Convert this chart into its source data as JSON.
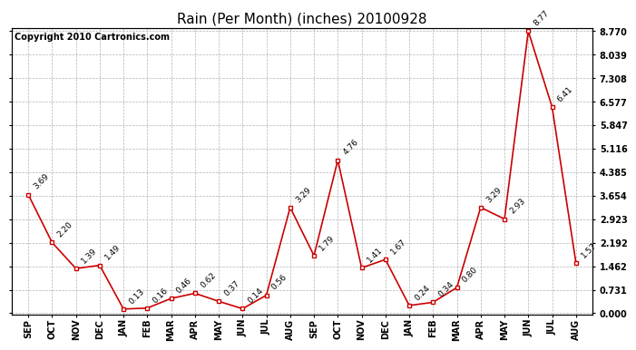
{
  "title": "Rain (Per Month) (inches) 20100928",
  "copyright": "Copyright 2010 Cartronics.com",
  "months": [
    "SEP",
    "OCT",
    "NOV",
    "DEC",
    "JAN",
    "FEB",
    "MAR",
    "APR",
    "MAY",
    "JUN",
    "JUL",
    "AUG",
    "SEP",
    "OCT",
    "NOV",
    "DEC",
    "JAN",
    "FEB",
    "MAR",
    "APR",
    "MAY",
    "JUN",
    "JUL",
    "AUG"
  ],
  "values": [
    3.69,
    2.2,
    1.39,
    1.49,
    0.13,
    0.16,
    0.46,
    0.62,
    0.37,
    0.14,
    0.56,
    3.29,
    1.79,
    4.76,
    1.41,
    1.67,
    0.24,
    0.34,
    0.8,
    3.29,
    2.93,
    8.77,
    6.41,
    1.57
  ],
  "yticks": [
    0.0,
    0.731,
    1.462,
    2.192,
    2.923,
    3.654,
    4.385,
    5.116,
    5.847,
    6.577,
    7.308,
    8.039,
    8.77
  ],
  "line_color": "#cc0000",
  "marker_color": "#cc0000",
  "background_color": "#ffffff",
  "grid_color": "#aaaaaa",
  "title_fontsize": 11,
  "copyright_fontsize": 7,
  "label_fontsize": 6.5,
  "tick_fontsize": 7,
  "ymin": 0.0,
  "ymax": 8.77,
  "figwidth": 6.9,
  "figheight": 3.75,
  "dpi": 100
}
